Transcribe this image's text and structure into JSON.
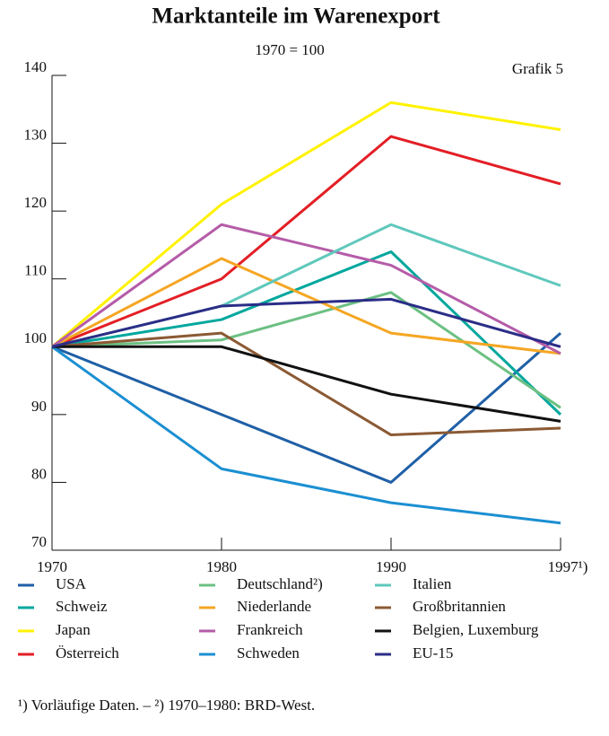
{
  "chart_data": {
    "type": "line",
    "title": "Marktanteile im Warenexport",
    "subtitle": "1970 = 100",
    "annotation": "Grafik 5",
    "footnote": "¹) Vorläufige Daten. – ²) 1970–1980: BRD-West.",
    "categories": [
      "1970",
      "1980",
      "1990",
      "1997¹)"
    ],
    "ylim": [
      70,
      140
    ],
    "yticks": [
      70,
      80,
      90,
      100,
      110,
      120,
      130,
      140
    ],
    "series": [
      {
        "name": "USA",
        "color": "#1f5fa6",
        "values": [
          100,
          90,
          80,
          102
        ]
      },
      {
        "name": "Schweiz",
        "color": "#00a79d",
        "values": [
          100,
          104,
          114,
          90
        ]
      },
      {
        "name": "Japan",
        "color": "#fff200",
        "values": [
          100,
          121,
          136,
          132
        ]
      },
      {
        "name": "Österreich",
        "color": "#e31e25",
        "values": [
          100,
          110,
          131,
          124
        ]
      },
      {
        "name": "Deutschland²)",
        "color": "#6cc083",
        "values": [
          100,
          101,
          108,
          91
        ]
      },
      {
        "name": "Niederlande",
        "color": "#f5a623",
        "values": [
          100,
          113,
          102,
          99
        ]
      },
      {
        "name": "Frankreich",
        "color": "#b55ca8",
        "values": [
          100,
          118,
          112,
          99
        ]
      },
      {
        "name": "Schweden",
        "color": "#1b8fd2",
        "values": [
          100,
          82,
          77,
          74
        ]
      },
      {
        "name": "Italien",
        "color": "#5fc8bc",
        "values": [
          100,
          106,
          118,
          109
        ]
      },
      {
        "name": "Großbritannien",
        "color": "#8b5a34",
        "values": [
          100,
          102,
          87,
          88
        ]
      },
      {
        "name": "Belgien, Luxemburg",
        "color": "#111111",
        "values": [
          100,
          100,
          93,
          89
        ]
      },
      {
        "name": "EU-15",
        "color": "#2b2d87",
        "values": [
          100,
          106,
          107,
          100
        ]
      }
    ]
  }
}
